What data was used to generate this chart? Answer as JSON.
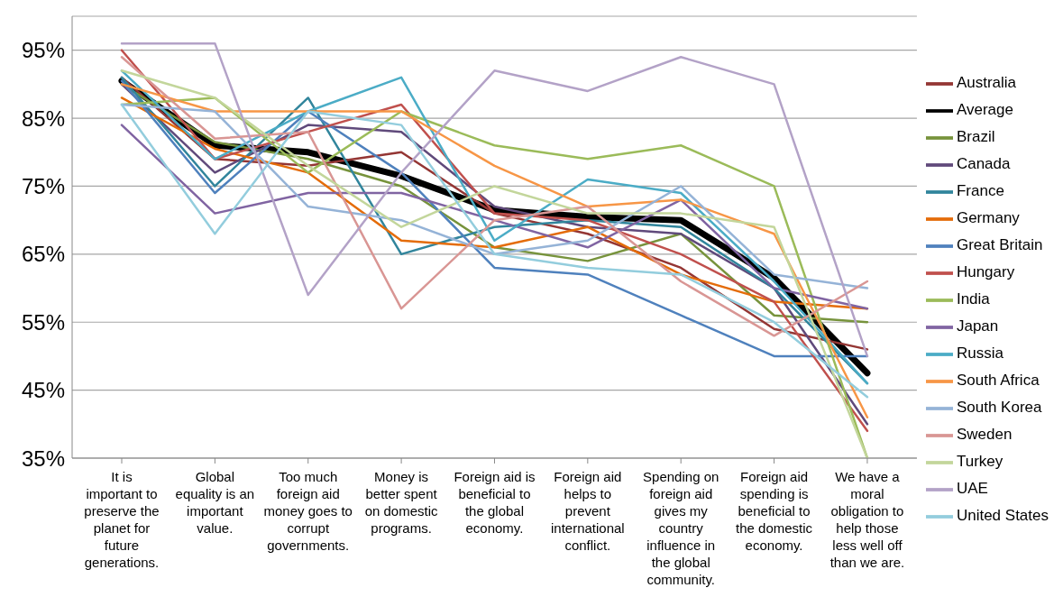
{
  "chart_data": {
    "type": "line",
    "categories": [
      "It is important to preserve the planet for future generations.",
      "Global equality is an important value.",
      "Too much foreign aid money goes to corrupt governments.",
      "Money is better spent on domestic programs.",
      "Foreign aid is beneficial to the global economy.",
      "Foreign aid helps to prevent international conflict.",
      "Spending on foreign aid gives my country influence in the global community.",
      "Foreign aid spending is beneficial to the domestic economy.",
      "We have a moral obligation to help those less well off than we are."
    ],
    "ylim": [
      35,
      100
    ],
    "yticks": [
      {
        "value": 35,
        "label": "35%"
      },
      {
        "value": 45,
        "label": "45%"
      },
      {
        "value": 55,
        "label": "55%"
      },
      {
        "value": 65,
        "label": "65%"
      },
      {
        "value": 75,
        "label": "75%"
      },
      {
        "value": 85,
        "label": "85%"
      },
      {
        "value": 95,
        "label": "95%"
      }
    ],
    "grid": "y",
    "legend": "right",
    "marker": "none",
    "line_style": "solid",
    "series": [
      {
        "name": "Average",
        "color": "#000000",
        "values": [
          90.5,
          81,
          80,
          76.5,
          71.5,
          70.5,
          70,
          61.5,
          47.5
        ]
      },
      {
        "name": "Australia",
        "color": "#943634",
        "values": [
          91,
          79,
          78,
          80,
          71,
          68,
          63,
          54,
          51
        ]
      },
      {
        "name": "Brazil",
        "color": "#77933c",
        "values": [
          90,
          81.5,
          79,
          75,
          66,
          64,
          68,
          56,
          55
        ]
      },
      {
        "name": "Canada",
        "color": "#604a7b",
        "values": [
          90,
          77,
          84,
          83,
          72,
          69,
          68,
          60,
          40
        ]
      },
      {
        "name": "France",
        "color": "#31859c",
        "values": [
          91,
          75,
          88,
          65,
          69,
          70,
          69,
          60,
          46
        ]
      },
      {
        "name": "Germany",
        "color": "#e46c0a",
        "values": [
          88,
          80.5,
          77,
          67,
          66,
          69,
          62,
          58,
          57
        ]
      },
      {
        "name": "Great Britain",
        "color": "#4f81bd",
        "values": [
          90.5,
          74,
          86,
          77,
          63,
          62,
          56,
          50,
          50
        ]
      },
      {
        "name": "Hungary",
        "color": "#c0504d",
        "values": [
          95,
          79,
          83,
          87,
          71,
          70,
          65,
          58,
          39
        ]
      },
      {
        "name": "India",
        "color": "#9bbb59",
        "values": [
          87,
          88,
          77,
          86,
          81,
          79,
          81,
          75,
          35
        ]
      },
      {
        "name": "Japan",
        "color": "#8064a2",
        "values": [
          84,
          71,
          74,
          74,
          70,
          66,
          73,
          60,
          57
        ]
      },
      {
        "name": "Russia",
        "color": "#4bacc6",
        "values": [
          92,
          79,
          86,
          91,
          67,
          76,
          74,
          61,
          46
        ]
      },
      {
        "name": "South Africa",
        "color": "#f79646",
        "values": [
          90,
          86,
          86,
          86,
          78,
          72,
          73,
          68,
          41
        ]
      },
      {
        "name": "South Korea",
        "color": "#95b3d7",
        "values": [
          87,
          86,
          72,
          70,
          65,
          67,
          75,
          62,
          60
        ]
      },
      {
        "name": "Sweden",
        "color": "#d99694",
        "values": [
          94,
          82,
          83,
          57,
          70,
          72,
          61,
          53,
          61
        ]
      },
      {
        "name": "Turkey",
        "color": "#c3d69b",
        "values": [
          92,
          88,
          78,
          69,
          75,
          71,
          71,
          69,
          35
        ]
      },
      {
        "name": "UAE",
        "color": "#b3a2c7",
        "values": [
          96,
          96,
          59,
          77,
          92,
          89,
          94,
          90,
          50
        ]
      },
      {
        "name": "United States",
        "color": "#93cddd",
        "values": [
          87,
          68,
          86,
          84,
          65,
          63,
          62,
          55,
          44
        ]
      }
    ]
  }
}
